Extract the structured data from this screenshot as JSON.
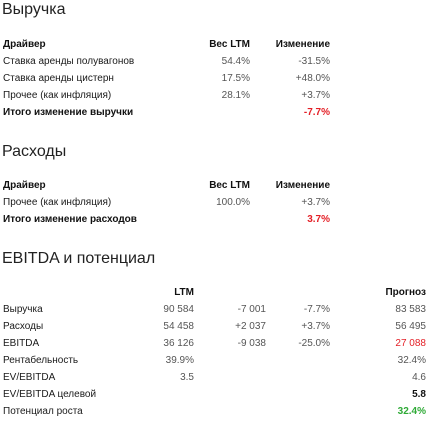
{
  "revenue": {
    "title": "Выручка",
    "headers": {
      "driver": "Драйвер",
      "weight": "Вес LTM",
      "change": "Изменение"
    },
    "rows": [
      {
        "label": "Ставка аренды полувагонов",
        "weight": "54.4%",
        "change": "-31.5%"
      },
      {
        "label": "Ставка аренды цистерн",
        "weight": "17.5%",
        "change": "+48.0%"
      },
      {
        "label": "Прочее (как инфляция)",
        "weight": "28.1%",
        "change": "+3.7%"
      }
    ],
    "total": {
      "label": "Итого изменение выручки",
      "change": "-7.7%"
    }
  },
  "expenses": {
    "title": "Расходы",
    "headers": {
      "driver": "Драйвер",
      "weight": "Вес LTM",
      "change": "Изменение"
    },
    "rows": [
      {
        "label": "Прочее (как инфляция)",
        "weight": "100.0%",
        "change": "+3.7%"
      }
    ],
    "total": {
      "label": "Итого изменение расходов",
      "change": "3.7%"
    }
  },
  "ebitda": {
    "title": "EBITDA и потенциал",
    "headers": {
      "ltm": "LTM",
      "forecast": "Прогноз"
    },
    "rows": [
      {
        "label": "Выручка",
        "ltm": "90 584",
        "delta": "-7 001",
        "pct": "-7.7%",
        "forecast": "83 583"
      },
      {
        "label": "Расходы",
        "ltm": "54 458",
        "delta": "+2 037",
        "pct": "+3.7%",
        "forecast": "56 495"
      },
      {
        "label": "EBITDA",
        "ltm": "36 126",
        "delta": "-9 038",
        "pct": "-25.0%",
        "forecast": "27 088"
      },
      {
        "label": "Рентабельность",
        "ltm": "39.9%",
        "delta": "",
        "pct": "",
        "forecast": "32.4%"
      },
      {
        "label": "EV/EBITDA",
        "ltm": "3.5",
        "delta": "",
        "pct": "",
        "forecast": "4.6"
      },
      {
        "label": "EV/EBITDA целевой",
        "ltm": "",
        "delta": "",
        "pct": "",
        "forecast": "5.8"
      },
      {
        "label": "Потенциал роста",
        "ltm": "",
        "delta": "",
        "pct": "",
        "forecast": "32.4%"
      }
    ]
  },
  "colors": {
    "negative": "#e41f26",
    "positive": "#2eaa36"
  }
}
